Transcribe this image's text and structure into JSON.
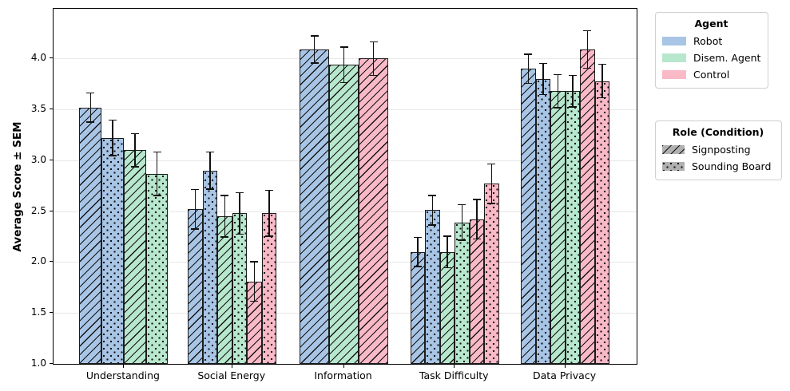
{
  "chart_data": {
    "type": "bar",
    "title": "",
    "ylabel": "Average Score ± SEM",
    "ylim": [
      1.0,
      4.49
    ],
    "yticks": [
      "1.0",
      "1.5",
      "2.0",
      "2.5",
      "3.0",
      "3.5",
      "4.0"
    ],
    "grid": "horizontal",
    "legend_position": "outside-right",
    "categories": [
      "Understanding",
      "Social Energy",
      "Information",
      "Task Difficulty",
      "Data Privacy"
    ],
    "agents": [
      {
        "name": "Robot",
        "color": "#a8c5e6"
      },
      {
        "name": "Disem. Agent",
        "color": "#b7e7cd"
      },
      {
        "name": "Control",
        "color": "#fab9c7"
      }
    ],
    "conditions": [
      {
        "name": "Signposting",
        "hatch": "diagonal"
      },
      {
        "name": "Sounding Board",
        "hatch": "dots"
      }
    ],
    "series": [
      {
        "agent": "Robot",
        "condition": "Signposting",
        "values": [
          3.52,
          2.52,
          4.09,
          2.1,
          3.9
        ],
        "sem": [
          0.15,
          0.2,
          0.14,
          0.15,
          0.15
        ]
      },
      {
        "agent": "Robot",
        "condition": "Sounding Board",
        "values": [
          3.22,
          2.9,
          null,
          2.51,
          3.8
        ],
        "sem": [
          0.18,
          0.19,
          null,
          0.15,
          0.16
        ]
      },
      {
        "agent": "Disem. Agent",
        "condition": "Signposting",
        "values": [
          3.1,
          2.45,
          3.94,
          2.1,
          3.68
        ],
        "sem": [
          0.17,
          0.21,
          0.18,
          0.16,
          0.17
        ]
      },
      {
        "agent": "Disem. Agent",
        "condition": "Sounding Board",
        "values": [
          2.87,
          2.48,
          null,
          2.39,
          3.68
        ],
        "sem": [
          0.22,
          0.21,
          null,
          0.18,
          0.16
        ]
      },
      {
        "agent": "Control",
        "condition": "Signposting",
        "values": [
          null,
          1.81,
          4.0,
          2.42,
          4.09
        ],
        "sem": [
          null,
          0.2,
          0.17,
          0.2,
          0.19
        ]
      },
      {
        "agent": "Control",
        "condition": "Sounding Board",
        "values": [
          null,
          2.48,
          null,
          2.77,
          3.78
        ],
        "sem": [
          null,
          0.23,
          null,
          0.2,
          0.17
        ]
      }
    ],
    "legends": {
      "agent_title": "Agent",
      "role_title": "Role (Condition)"
    },
    "colors": {
      "bar_edge": "#1c1c1c",
      "error_bar": "#111111",
      "grid": "#e8e8e8",
      "role_swatch": "#b0b0b0"
    }
  }
}
